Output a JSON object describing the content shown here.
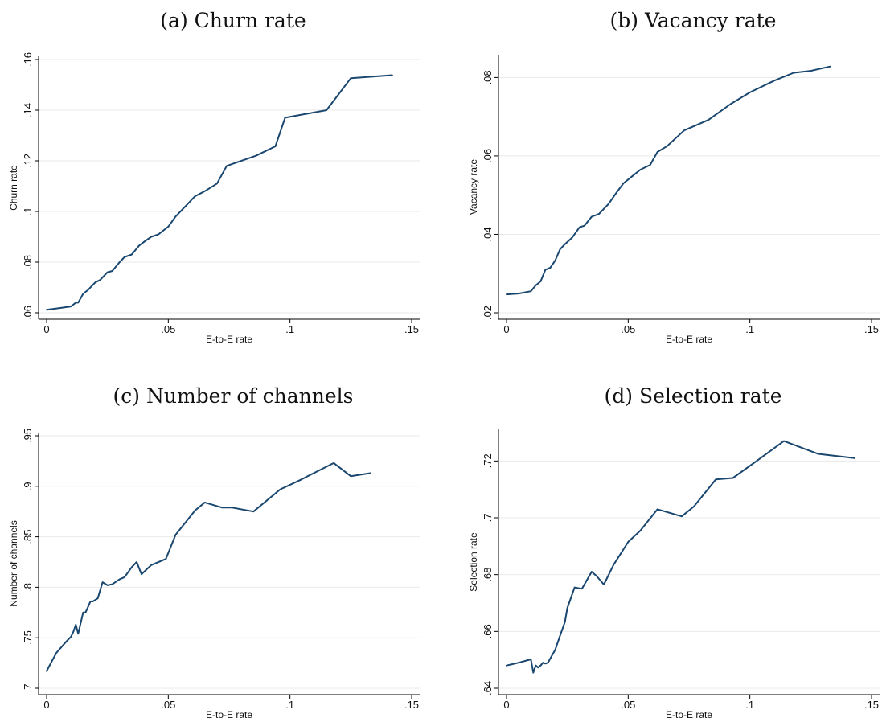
{
  "style": {
    "line_color": "#1a476f",
    "grid_color": "#eaeaea",
    "axis_color": "#000000",
    "background": "#ffffff"
  },
  "chart_data": [
    {
      "type": "line",
      "title": "(a) Churn rate",
      "xlabel": "E-to-E rate",
      "ylabel": "Churn rate",
      "xlim": [
        0,
        0.15
      ],
      "ylim": [
        0.06,
        0.16
      ],
      "xticks": [
        0,
        0.05,
        0.1,
        0.15
      ],
      "xtick_labels": [
        "0",
        ".05",
        ".1",
        ".15"
      ],
      "yticks": [
        0.06,
        0.08,
        0.1,
        0.12,
        0.14,
        0.16
      ],
      "ytick_labels": [
        ".06",
        ".08",
        ".1",
        ".12",
        ".14",
        ".16"
      ],
      "grid": true,
      "series": [
        {
          "x": [
            0,
            0.005,
            0.01,
            0.012,
            0.013,
            0.015,
            0.017,
            0.02,
            0.022,
            0.025,
            0.027,
            0.03,
            0.032,
            0.035,
            0.038,
            0.04,
            0.043,
            0.046,
            0.05,
            0.053,
            0.057,
            0.061,
            0.065,
            0.07,
            0.074,
            0.086,
            0.094,
            0.098,
            0.115,
            0.125,
            0.142
          ],
          "y": [
            0.0612,
            0.0618,
            0.0625,
            0.064,
            0.064,
            0.0675,
            0.069,
            0.072,
            0.073,
            0.076,
            0.0765,
            0.08,
            0.082,
            0.083,
            0.0865,
            0.088,
            0.09,
            0.091,
            0.094,
            0.098,
            0.102,
            0.106,
            0.108,
            0.111,
            0.118,
            0.122,
            0.1257,
            0.137,
            0.14,
            0.1526,
            0.1538
          ]
        }
      ]
    },
    {
      "type": "line",
      "title": "(b) Vacancy rate",
      "xlabel": "E-to-E rate",
      "ylabel": "Vacancy rate",
      "xlim": [
        0,
        0.15
      ],
      "ylim": [
        0.02,
        0.085
      ],
      "xticks": [
        0,
        0.05,
        0.1,
        0.15
      ],
      "xtick_labels": [
        "0",
        ".05",
        ".1",
        ".15"
      ],
      "yticks": [
        0.02,
        0.04,
        0.06,
        0.08
      ],
      "ytick_labels": [
        ".02",
        ".04",
        ".06",
        ".08"
      ],
      "grid": true,
      "series": [
        {
          "x": [
            0,
            0.005,
            0.01,
            0.012,
            0.014,
            0.016,
            0.018,
            0.02,
            0.022,
            0.024,
            0.027,
            0.03,
            0.032,
            0.035,
            0.038,
            0.042,
            0.045,
            0.048,
            0.052,
            0.055,
            0.059,
            0.062,
            0.066,
            0.073,
            0.083,
            0.092,
            0.1,
            0.11,
            0.118,
            0.125,
            0.133
          ],
          "y": [
            0.0247,
            0.0249,
            0.0255,
            0.027,
            0.028,
            0.031,
            0.0315,
            0.0333,
            0.0362,
            0.0375,
            0.0392,
            0.0418,
            0.0422,
            0.0445,
            0.0452,
            0.0478,
            0.0505,
            0.053,
            0.055,
            0.0565,
            0.0577,
            0.061,
            0.0625,
            0.0665,
            0.0692,
            0.0732,
            0.0762,
            0.0792,
            0.0812,
            0.0817,
            0.0828
          ]
        }
      ]
    },
    {
      "type": "line",
      "title": "(c) Number of channels",
      "xlabel": "E-to-E rate",
      "ylabel": "Number of channels",
      "xlim": [
        0,
        0.15
      ],
      "ylim": [
        0.7,
        0.95
      ],
      "xticks": [
        0,
        0.05,
        0.1,
        0.15
      ],
      "xtick_labels": [
        "0",
        ".05",
        ".1",
        ".15"
      ],
      "yticks": [
        0.7,
        0.75,
        0.8,
        0.85,
        0.9,
        0.95
      ],
      "ytick_labels": [
        ".7",
        ".75",
        ".8",
        ".85",
        ".9",
        ".95"
      ],
      "grid": true,
      "series": [
        {
          "x": [
            0,
            0.004,
            0.008,
            0.01,
            0.011,
            0.012,
            0.013,
            0.015,
            0.016,
            0.018,
            0.019,
            0.021,
            0.023,
            0.025,
            0.027,
            0.03,
            0.032,
            0.035,
            0.037,
            0.039,
            0.043,
            0.049,
            0.053,
            0.061,
            0.065,
            0.072,
            0.076,
            0.085,
            0.096,
            0.104,
            0.118,
            0.125,
            0.133
          ],
          "y": [
            0.717,
            0.735,
            0.746,
            0.751,
            0.756,
            0.763,
            0.754,
            0.775,
            0.775,
            0.786,
            0.786,
            0.789,
            0.805,
            0.802,
            0.803,
            0.808,
            0.81,
            0.82,
            0.825,
            0.813,
            0.822,
            0.828,
            0.852,
            0.876,
            0.884,
            0.879,
            0.879,
            0.875,
            0.897,
            0.906,
            0.923,
            0.91,
            0.913
          ]
        }
      ]
    },
    {
      "type": "line",
      "title": "(d) Selection rate",
      "xlabel": "E-to-E rate",
      "ylabel": "Selection rate",
      "xlim": [
        0,
        0.15
      ],
      "ylim": [
        0.64,
        0.73
      ],
      "xticks": [
        0,
        0.05,
        0.1,
        0.15
      ],
      "xtick_labels": [
        "0",
        ".05",
        ".1",
        ".15"
      ],
      "yticks": [
        0.64,
        0.66,
        0.68,
        0.7,
        0.72
      ],
      "ytick_labels": [
        ".64",
        ".66",
        ".68",
        ".7",
        ".72"
      ],
      "grid": true,
      "series": [
        {
          "x": [
            0,
            0.005,
            0.01,
            0.011,
            0.012,
            0.013,
            0.014,
            0.015,
            0.016,
            0.017,
            0.018,
            0.02,
            0.022,
            0.024,
            0.025,
            0.028,
            0.031,
            0.035,
            0.037,
            0.04,
            0.044,
            0.047,
            0.05,
            0.055,
            0.062,
            0.072,
            0.077,
            0.086,
            0.093,
            0.102,
            0.114,
            0.128,
            0.143
          ],
          "y": [
            0.648,
            0.649,
            0.6502,
            0.6455,
            0.648,
            0.6473,
            0.648,
            0.649,
            0.6487,
            0.649,
            0.6505,
            0.6535,
            0.6585,
            0.6633,
            0.6683,
            0.6755,
            0.675,
            0.681,
            0.6795,
            0.6765,
            0.6835,
            0.6875,
            0.6915,
            0.6955,
            0.703,
            0.7005,
            0.704,
            0.7135,
            0.714,
            0.7195,
            0.727,
            0.7225,
            0.721
          ]
        }
      ]
    }
  ]
}
